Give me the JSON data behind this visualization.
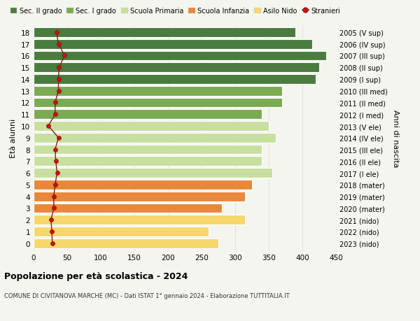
{
  "ages": [
    0,
    1,
    2,
    3,
    4,
    5,
    6,
    7,
    8,
    9,
    10,
    11,
    12,
    13,
    14,
    15,
    16,
    17,
    18
  ],
  "right_labels": [
    "2023 (nido)",
    "2022 (nido)",
    "2021 (nido)",
    "2020 (mater)",
    "2019 (mater)",
    "2018 (mater)",
    "2017 (I ele)",
    "2016 (II ele)",
    "2015 (III ele)",
    "2014 (IV ele)",
    "2013 (V ele)",
    "2012 (I med)",
    "2011 (II med)",
    "2010 (III med)",
    "2009 (I sup)",
    "2008 (II sup)",
    "2007 (III sup)",
    "2006 (IV sup)",
    "2005 (V sup)"
  ],
  "bar_values": [
    275,
    260,
    315,
    280,
    315,
    325,
    355,
    340,
    340,
    360,
    350,
    340,
    370,
    370,
    420,
    425,
    435,
    415,
    390
  ],
  "bar_colors": [
    "#f5d76e",
    "#f5d76e",
    "#f5d76e",
    "#e8883a",
    "#e8883a",
    "#e8883a",
    "#c8dfa0",
    "#c8dfa0",
    "#c8dfa0",
    "#c8dfa0",
    "#c8dfa0",
    "#7aaa52",
    "#7aaa52",
    "#7aaa52",
    "#4a7c3f",
    "#4a7c3f",
    "#4a7c3f",
    "#4a7c3f",
    "#4a7c3f"
  ],
  "stranieri_values": [
    28,
    27,
    26,
    30,
    30,
    32,
    35,
    33,
    32,
    37,
    22,
    32,
    32,
    37,
    37,
    38,
    46,
    37,
    34
  ],
  "xlim": [
    0,
    450
  ],
  "xticks": [
    0,
    50,
    100,
    150,
    200,
    250,
    300,
    350,
    400,
    450
  ],
  "legend_labels": [
    "Sec. II grado",
    "Sec. I grado",
    "Scuola Primaria",
    "Scuola Infanzia",
    "Asilo Nido",
    "Stranieri"
  ],
  "legend_colors": [
    "#4a7c3f",
    "#7aaa52",
    "#c8dfa0",
    "#e8883a",
    "#f5d76e",
    "#aa1111"
  ],
  "ylabel_left": "Età alunni",
  "ylabel_right": "Anni di nascita",
  "title": "Popolazione per età scolastica - 2024",
  "subtitle": "COMUNE DI CIVITANOVA MARCHE (MC) - Dati ISTAT 1° gennaio 2024 - Elaborazione TUTTITALIA.IT",
  "bg_color": "#f5f5f0",
  "bar_height": 0.82,
  "ylim": [
    -0.6,
    18.6
  ]
}
